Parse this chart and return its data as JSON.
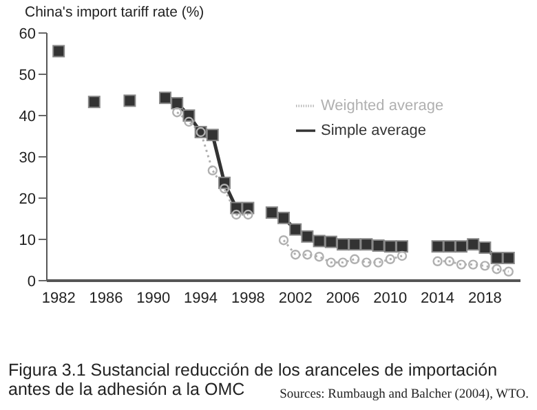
{
  "chart_data": {
    "type": "line",
    "ylabel": "China's import tariff rate (%)",
    "x": [
      1982,
      1983,
      1984,
      1985,
      1986,
      1987,
      1988,
      1989,
      1990,
      1991,
      1992,
      1993,
      1994,
      1995,
      1996,
      1997,
      1998,
      1999,
      2000,
      2001,
      2002,
      2003,
      2004,
      2005,
      2006,
      2007,
      2008,
      2009,
      2010,
      2011,
      2012,
      2013,
      2014,
      2015,
      2016,
      2017,
      2018,
      2019,
      2020
    ],
    "series": [
      {
        "name": "Weighted average",
        "color": "#b0b0b0",
        "marker": "circle",
        "line_style": "dotted",
        "values": [
          null,
          null,
          null,
          null,
          null,
          null,
          null,
          null,
          null,
          null,
          40.8,
          38.5,
          36,
          26.7,
          22.3,
          16,
          16,
          null,
          null,
          9.8,
          6.3,
          6.3,
          5.8,
          4.4,
          4.4,
          5.2,
          4.4,
          4.4,
          5.2,
          6,
          null,
          null,
          4.7,
          4.7,
          3.9,
          3.9,
          3.6,
          2.8,
          2.2
        ]
      },
      {
        "name": "Simple average",
        "color": "#333333",
        "marker": "square",
        "line_style": "solid",
        "values": [
          55.6,
          null,
          null,
          43.3,
          null,
          null,
          43.6,
          null,
          null,
          44.3,
          43,
          40,
          36,
          35.3,
          23.7,
          17.6,
          17.6,
          null,
          16.5,
          15.2,
          12.4,
          10.7,
          9.6,
          9.4,
          8.8,
          8.8,
          8.8,
          8.5,
          8.3,
          8.3,
          null,
          null,
          8.3,
          8.3,
          8.3,
          8.8,
          8,
          5.5,
          5.5
        ]
      }
    ],
    "xlim": [
      1981,
      2021
    ],
    "xticks": [
      1982,
      1986,
      1990,
      1994,
      1998,
      2002,
      2006,
      2010,
      2014,
      2018
    ],
    "ylim": [
      0,
      60
    ],
    "yticks": [
      0,
      10,
      20,
      30,
      40,
      50,
      60
    ],
    "grid": false,
    "legend": "right",
    "annotations": [
      "Figura 3.1 Sustancial reducción de los aranceles de importación antes de la adhesión a la OMC",
      "Sources: Rumbaugh and Balcher (2004), WTO."
    ]
  }
}
